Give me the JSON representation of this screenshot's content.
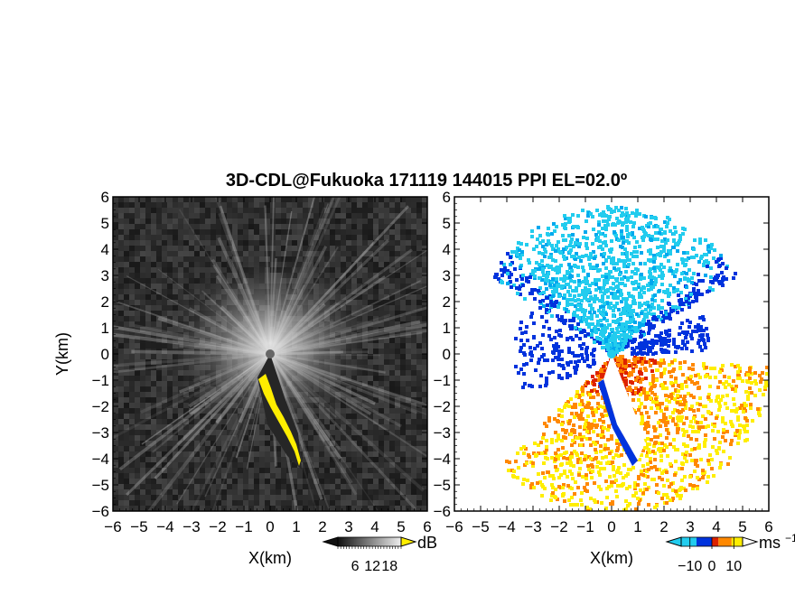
{
  "title": "3D-CDL@Fukuoka 171119 144015 PPI EL=02.0º",
  "chart_data": [
    {
      "type": "heatmap",
      "panel": "reflectivity",
      "xlabel": "X(km)",
      "ylabel": "Y(km)",
      "xlim": [
        -6,
        6
      ],
      "ylim": [
        -6,
        6
      ],
      "xticks": [
        "−6",
        "−5",
        "−4",
        "−3",
        "−2",
        "−1",
        "0",
        "1",
        "2",
        "3",
        "4",
        "5",
        "6"
      ],
      "yticks": [
        "6",
        "5",
        "4",
        "3",
        "2",
        "1",
        "0",
        "−1",
        "−2",
        "−3",
        "−4",
        "−5",
        "−6"
      ],
      "colorbar": {
        "unit": "dB",
        "ticks": [
          "6",
          "12",
          "18"
        ],
        "range": [
          0,
          22
        ],
        "colormap": "grayscale"
      },
      "background": "#2a2a2a",
      "highlight_color": "#ffee00"
    },
    {
      "type": "heatmap",
      "panel": "doppler-velocity",
      "xlabel": "X(km)",
      "xlim": [
        -6,
        6
      ],
      "ylim": [
        -6,
        6
      ],
      "xticks": [
        "−6",
        "−5",
        "−4",
        "−3",
        "−2",
        "−1",
        "0",
        "1",
        "2",
        "3",
        "4",
        "5",
        "6"
      ],
      "yticks": [
        "6",
        "5",
        "4",
        "3",
        "2",
        "1",
        "0",
        "−1",
        "−2",
        "−3",
        "−4",
        "−5",
        "−6"
      ],
      "colorbar": {
        "unit": "ms",
        "unit_exp": "−1",
        "ticks": [
          "−10",
          "0",
          "10"
        ],
        "tick_values": [
          -10,
          0,
          10
        ],
        "range": [
          -14,
          14
        ],
        "colors": [
          "#22ccee",
          "#0033dd",
          "#dd2200",
          "#ff8800",
          "#ffee00"
        ]
      },
      "background": "#ffffff"
    }
  ]
}
